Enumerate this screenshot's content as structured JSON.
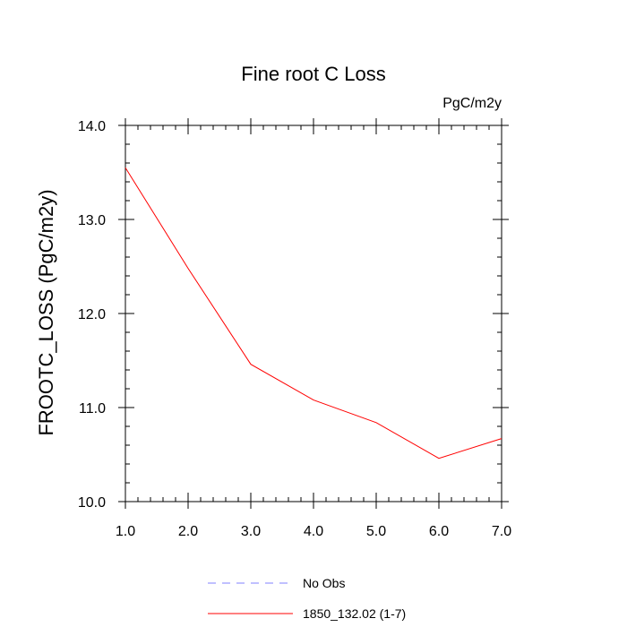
{
  "chart_data": {
    "type": "line",
    "title": "Fine root C Loss",
    "units_label": "PgC/m2y",
    "ylabel": "FROOTC_LOSS  (PgC/m2y)",
    "xlabel": "",
    "xlim": [
      1.0,
      7.0
    ],
    "ylim": [
      10.0,
      14.0
    ],
    "xticks": [
      "1.0",
      "2.0",
      "3.0",
      "4.0",
      "5.0",
      "6.0",
      "7.0"
    ],
    "yticks": [
      "10.0",
      "11.0",
      "12.0",
      "13.0",
      "14.0"
    ],
    "series": [
      {
        "name": "1850_132.02 (1-7)",
        "color": "#ff0000",
        "style": "solid",
        "x": [
          1,
          2,
          3,
          4,
          5,
          6,
          7
        ],
        "y": [
          13.55,
          12.48,
          11.46,
          11.08,
          10.84,
          10.46,
          10.67
        ]
      }
    ],
    "legend": [
      {
        "label": "No Obs",
        "color": "#8080ff",
        "style": "dashed"
      },
      {
        "label": "1850_132.02 (1-7)",
        "color": "#ff0000",
        "style": "solid"
      }
    ],
    "legend_position": "bottom",
    "grid": false
  }
}
